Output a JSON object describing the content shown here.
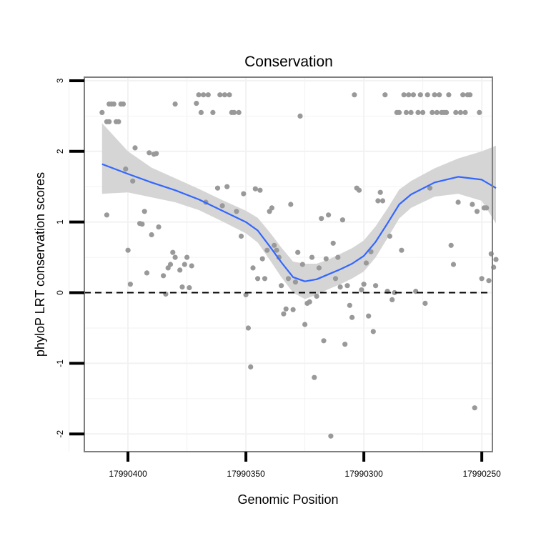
{
  "chart_data": {
    "type": "scatter",
    "title": "Conservation",
    "xlabel": "Genomic Position",
    "ylabel": "phyloP LRT conservation scores",
    "x_reversed": true,
    "xlim": [
      17990418.5,
      17990245.5
    ],
    "ylim": [
      -2.25,
      3.05
    ],
    "x_ticks": [
      {
        "value": 17990400,
        "label": "17990400"
      },
      {
        "value": 17990350,
        "label": "17990350"
      },
      {
        "value": 17990300,
        "label": "17990300"
      },
      {
        "value": 17990250,
        "label": "17990250"
      }
    ],
    "y_ticks": [
      {
        "value": -2,
        "label": "-2"
      },
      {
        "value": -1,
        "label": "-1"
      },
      {
        "value": 0,
        "label": "0"
      },
      {
        "value": 1,
        "label": "1"
      },
      {
        "value": 2,
        "label": "2"
      },
      {
        "value": 3,
        "label": "3"
      }
    ],
    "reference_line": {
      "y": 0,
      "style": "dashed"
    },
    "colors": {
      "points": "#999999",
      "smooth_line": "#3366FF",
      "ribbon": "#D3D3D3",
      "panel_border": "#7F7F7F",
      "grid": "#F2F2F2"
    },
    "points": [
      [
        17990411,
        2.55
      ],
      [
        17990409,
        1.1
      ],
      [
        17990409,
        2.42
      ],
      [
        17990408,
        2.42
      ],
      [
        17990408,
        2.67
      ],
      [
        17990407,
        2.67
      ],
      [
        17990406,
        2.67
      ],
      [
        17990405,
        2.42
      ],
      [
        17990404,
        2.42
      ],
      [
        17990403,
        2.67
      ],
      [
        17990402,
        2.67
      ],
      [
        17990401,
        1.75
      ],
      [
        17990400,
        0.6
      ],
      [
        17990399,
        0.12
      ],
      [
        17990398,
        1.58
      ],
      [
        17990397,
        2.05
      ],
      [
        17990395,
        0.98
      ],
      [
        17990394,
        0.97
      ],
      [
        17990393,
        1.15
      ],
      [
        17990392,
        0.28
      ],
      [
        17990391,
        1.98
      ],
      [
        17990390,
        0.82
      ],
      [
        17990389,
        1.96
      ],
      [
        17990388,
        1.97
      ],
      [
        17990387,
        0.93
      ],
      [
        17990385,
        0.24
      ],
      [
        17990384,
        -0.02
      ],
      [
        17990383,
        0.35
      ],
      [
        17990382,
        0.4
      ],
      [
        17990381,
        0.57
      ],
      [
        17990380,
        0.5
      ],
      [
        17990380,
        2.67
      ],
      [
        17990378,
        0.32
      ],
      [
        17990377,
        0.08
      ],
      [
        17990376,
        0.4
      ],
      [
        17990375,
        0.5
      ],
      [
        17990374,
        0.07
      ],
      [
        17990373,
        0.38
      ],
      [
        17990371,
        2.68
      ],
      [
        17990370,
        2.8
      ],
      [
        17990369,
        2.55
      ],
      [
        17990368,
        2.8
      ],
      [
        17990367,
        1.28
      ],
      [
        17990366,
        2.8
      ],
      [
        17990364,
        2.55
      ],
      [
        17990362,
        1.48
      ],
      [
        17990361,
        2.8
      ],
      [
        17990360,
        1.23
      ],
      [
        17990359,
        2.8
      ],
      [
        17990358,
        1.5
      ],
      [
        17990357,
        2.8
      ],
      [
        17990356,
        2.55
      ],
      [
        17990355,
        2.55
      ],
      [
        17990354,
        1.15
      ],
      [
        17990353,
        2.55
      ],
      [
        17990352,
        0.8
      ],
      [
        17990351,
        1.4
      ],
      [
        17990350,
        -0.03
      ],
      [
        17990349,
        -0.5
      ],
      [
        17990348,
        -1.05
      ],
      [
        17990347,
        0.35
      ],
      [
        17990346,
        1.47
      ],
      [
        17990345,
        0.2
      ],
      [
        17990344,
        1.45
      ],
      [
        17990343,
        0.48
      ],
      [
        17990342,
        0.2
      ],
      [
        17990341,
        0.6
      ],
      [
        17990340,
        1.15
      ],
      [
        17990339,
        1.2
      ],
      [
        17990338,
        0.67
      ],
      [
        17990337,
        0.6
      ],
      [
        17990336,
        0.5
      ],
      [
        17990335,
        0.1
      ],
      [
        17990334,
        -0.3
      ],
      [
        17990333,
        -0.23
      ],
      [
        17990332,
        0.2
      ],
      [
        17990331,
        1.25
      ],
      [
        17990330,
        -0.24
      ],
      [
        17990329,
        0.15
      ],
      [
        17990328,
        0.57
      ],
      [
        17990327,
        2.5
      ],
      [
        17990326,
        0.4
      ],
      [
        17990325,
        -0.45
      ],
      [
        17990324,
        -0.15
      ],
      [
        17990323,
        -0.13
      ],
      [
        17990322,
        0.5
      ],
      [
        17990321,
        -1.2
      ],
      [
        17990320,
        -0.05
      ],
      [
        17990319,
        0.35
      ],
      [
        17990318,
        1.05
      ],
      [
        17990317,
        -0.68
      ],
      [
        17990316,
        0.48
      ],
      [
        17990315,
        1.1
      ],
      [
        17990314,
        -2.03
      ],
      [
        17990313,
        0.7
      ],
      [
        17990312,
        0.2
      ],
      [
        17990311,
        0.5
      ],
      [
        17990310,
        0.08
      ],
      [
        17990309,
        1.03
      ],
      [
        17990308,
        -0.73
      ],
      [
        17990307,
        0.1
      ],
      [
        17990306,
        -0.18
      ],
      [
        17990305,
        -0.35
      ],
      [
        17990304,
        2.8
      ],
      [
        17990303,
        1.48
      ],
      [
        17990302,
        1.45
      ],
      [
        17990301,
        0.04
      ],
      [
        17990300,
        0.12
      ],
      [
        17990299,
        0.42
      ],
      [
        17990298,
        -0.33
      ],
      [
        17990297,
        0.58
      ],
      [
        17990296,
        -0.55
      ],
      [
        17990295,
        0.1
      ],
      [
        17990294,
        1.3
      ],
      [
        17990293,
        1.42
      ],
      [
        17990292,
        1.3
      ],
      [
        17990291,
        2.8
      ],
      [
        17990290,
        0.02
      ],
      [
        17990289,
        0.8
      ],
      [
        17990288,
        -0.1
      ],
      [
        17990287,
        0.0
      ],
      [
        17990286,
        2.55
      ],
      [
        17990285,
        2.55
      ],
      [
        17990284,
        0.6
      ],
      [
        17990283,
        2.8
      ],
      [
        17990282,
        2.55
      ],
      [
        17990281,
        2.8
      ],
      [
        17990280,
        2.55
      ],
      [
        17990279,
        2.8
      ],
      [
        17990278,
        0.02
      ],
      [
        17990277,
        2.55
      ],
      [
        17990276,
        2.8
      ],
      [
        17990275,
        2.55
      ],
      [
        17990274,
        -0.15
      ],
      [
        17990273,
        2.8
      ],
      [
        17990272,
        1.48
      ],
      [
        17990271,
        2.55
      ],
      [
        17990270,
        2.8
      ],
      [
        17990269,
        2.55
      ],
      [
        17990268,
        2.8
      ],
      [
        17990267,
        2.55
      ],
      [
        17990266,
        2.55
      ],
      [
        17990265,
        2.55
      ],
      [
        17990264,
        2.8
      ],
      [
        17990263,
        0.67
      ],
      [
        17990262,
        0.4
      ],
      [
        17990261,
        2.55
      ],
      [
        17990260,
        1.28
      ],
      [
        17990259,
        2.55
      ],
      [
        17990258,
        2.8
      ],
      [
        17990257,
        2.55
      ],
      [
        17990256,
        2.8
      ],
      [
        17990255,
        2.8
      ],
      [
        17990254,
        1.25
      ],
      [
        17990253,
        -1.63
      ],
      [
        17990252,
        1.15
      ],
      [
        17990251,
        2.55
      ],
      [
        17990250,
        0.2
      ],
      [
        17990249,
        1.2
      ],
      [
        17990248,
        1.2
      ],
      [
        17990247,
        0.17
      ],
      [
        17990246,
        0.55
      ],
      [
        17990245,
        0.36
      ],
      [
        17990244,
        0.47
      ]
    ],
    "smooth": [
      {
        "x": 17990411,
        "y": 1.82,
        "lo": 1.4,
        "hi": 2.4
      },
      {
        "x": 17990400,
        "y": 1.68,
        "lo": 1.42,
        "hi": 2.0
      },
      {
        "x": 17990390,
        "y": 1.56,
        "lo": 1.35,
        "hi": 1.77
      },
      {
        "x": 17990380,
        "y": 1.45,
        "lo": 1.28,
        "hi": 1.62
      },
      {
        "x": 17990370,
        "y": 1.32,
        "lo": 1.17,
        "hi": 1.47
      },
      {
        "x": 17990360,
        "y": 1.16,
        "lo": 1.01,
        "hi": 1.31
      },
      {
        "x": 17990350,
        "y": 1.0,
        "lo": 0.84,
        "hi": 1.16
      },
      {
        "x": 17990345,
        "y": 0.88,
        "lo": 0.71,
        "hi": 1.06
      },
      {
        "x": 17990340,
        "y": 0.66,
        "lo": 0.47,
        "hi": 0.86
      },
      {
        "x": 17990335,
        "y": 0.43,
        "lo": 0.22,
        "hi": 0.64
      },
      {
        "x": 17990330,
        "y": 0.22,
        "lo": 0.0,
        "hi": 0.44
      },
      {
        "x": 17990325,
        "y": 0.16,
        "lo": -0.09,
        "hi": 0.41
      },
      {
        "x": 17990320,
        "y": 0.19,
        "lo": -0.03,
        "hi": 0.41
      },
      {
        "x": 17990315,
        "y": 0.26,
        "lo": 0.05,
        "hi": 0.47
      },
      {
        "x": 17990310,
        "y": 0.33,
        "lo": 0.12,
        "hi": 0.55
      },
      {
        "x": 17990305,
        "y": 0.41,
        "lo": 0.2,
        "hi": 0.63
      },
      {
        "x": 17990300,
        "y": 0.52,
        "lo": 0.3,
        "hi": 0.74
      },
      {
        "x": 17990295,
        "y": 0.72,
        "lo": 0.5,
        "hi": 0.94
      },
      {
        "x": 17990290,
        "y": 0.98,
        "lo": 0.77,
        "hi": 1.19
      },
      {
        "x": 17990285,
        "y": 1.25,
        "lo": 1.05,
        "hi": 1.46
      },
      {
        "x": 17990280,
        "y": 1.39,
        "lo": 1.2,
        "hi": 1.58
      },
      {
        "x": 17990270,
        "y": 1.56,
        "lo": 1.36,
        "hi": 1.76
      },
      {
        "x": 17990260,
        "y": 1.64,
        "lo": 1.4,
        "hi": 1.9
      },
      {
        "x": 17990250,
        "y": 1.6,
        "lo": 1.3,
        "hi": 2.0
      },
      {
        "x": 17990244,
        "y": 1.48,
        "lo": 0.98,
        "hi": 2.08
      }
    ]
  }
}
